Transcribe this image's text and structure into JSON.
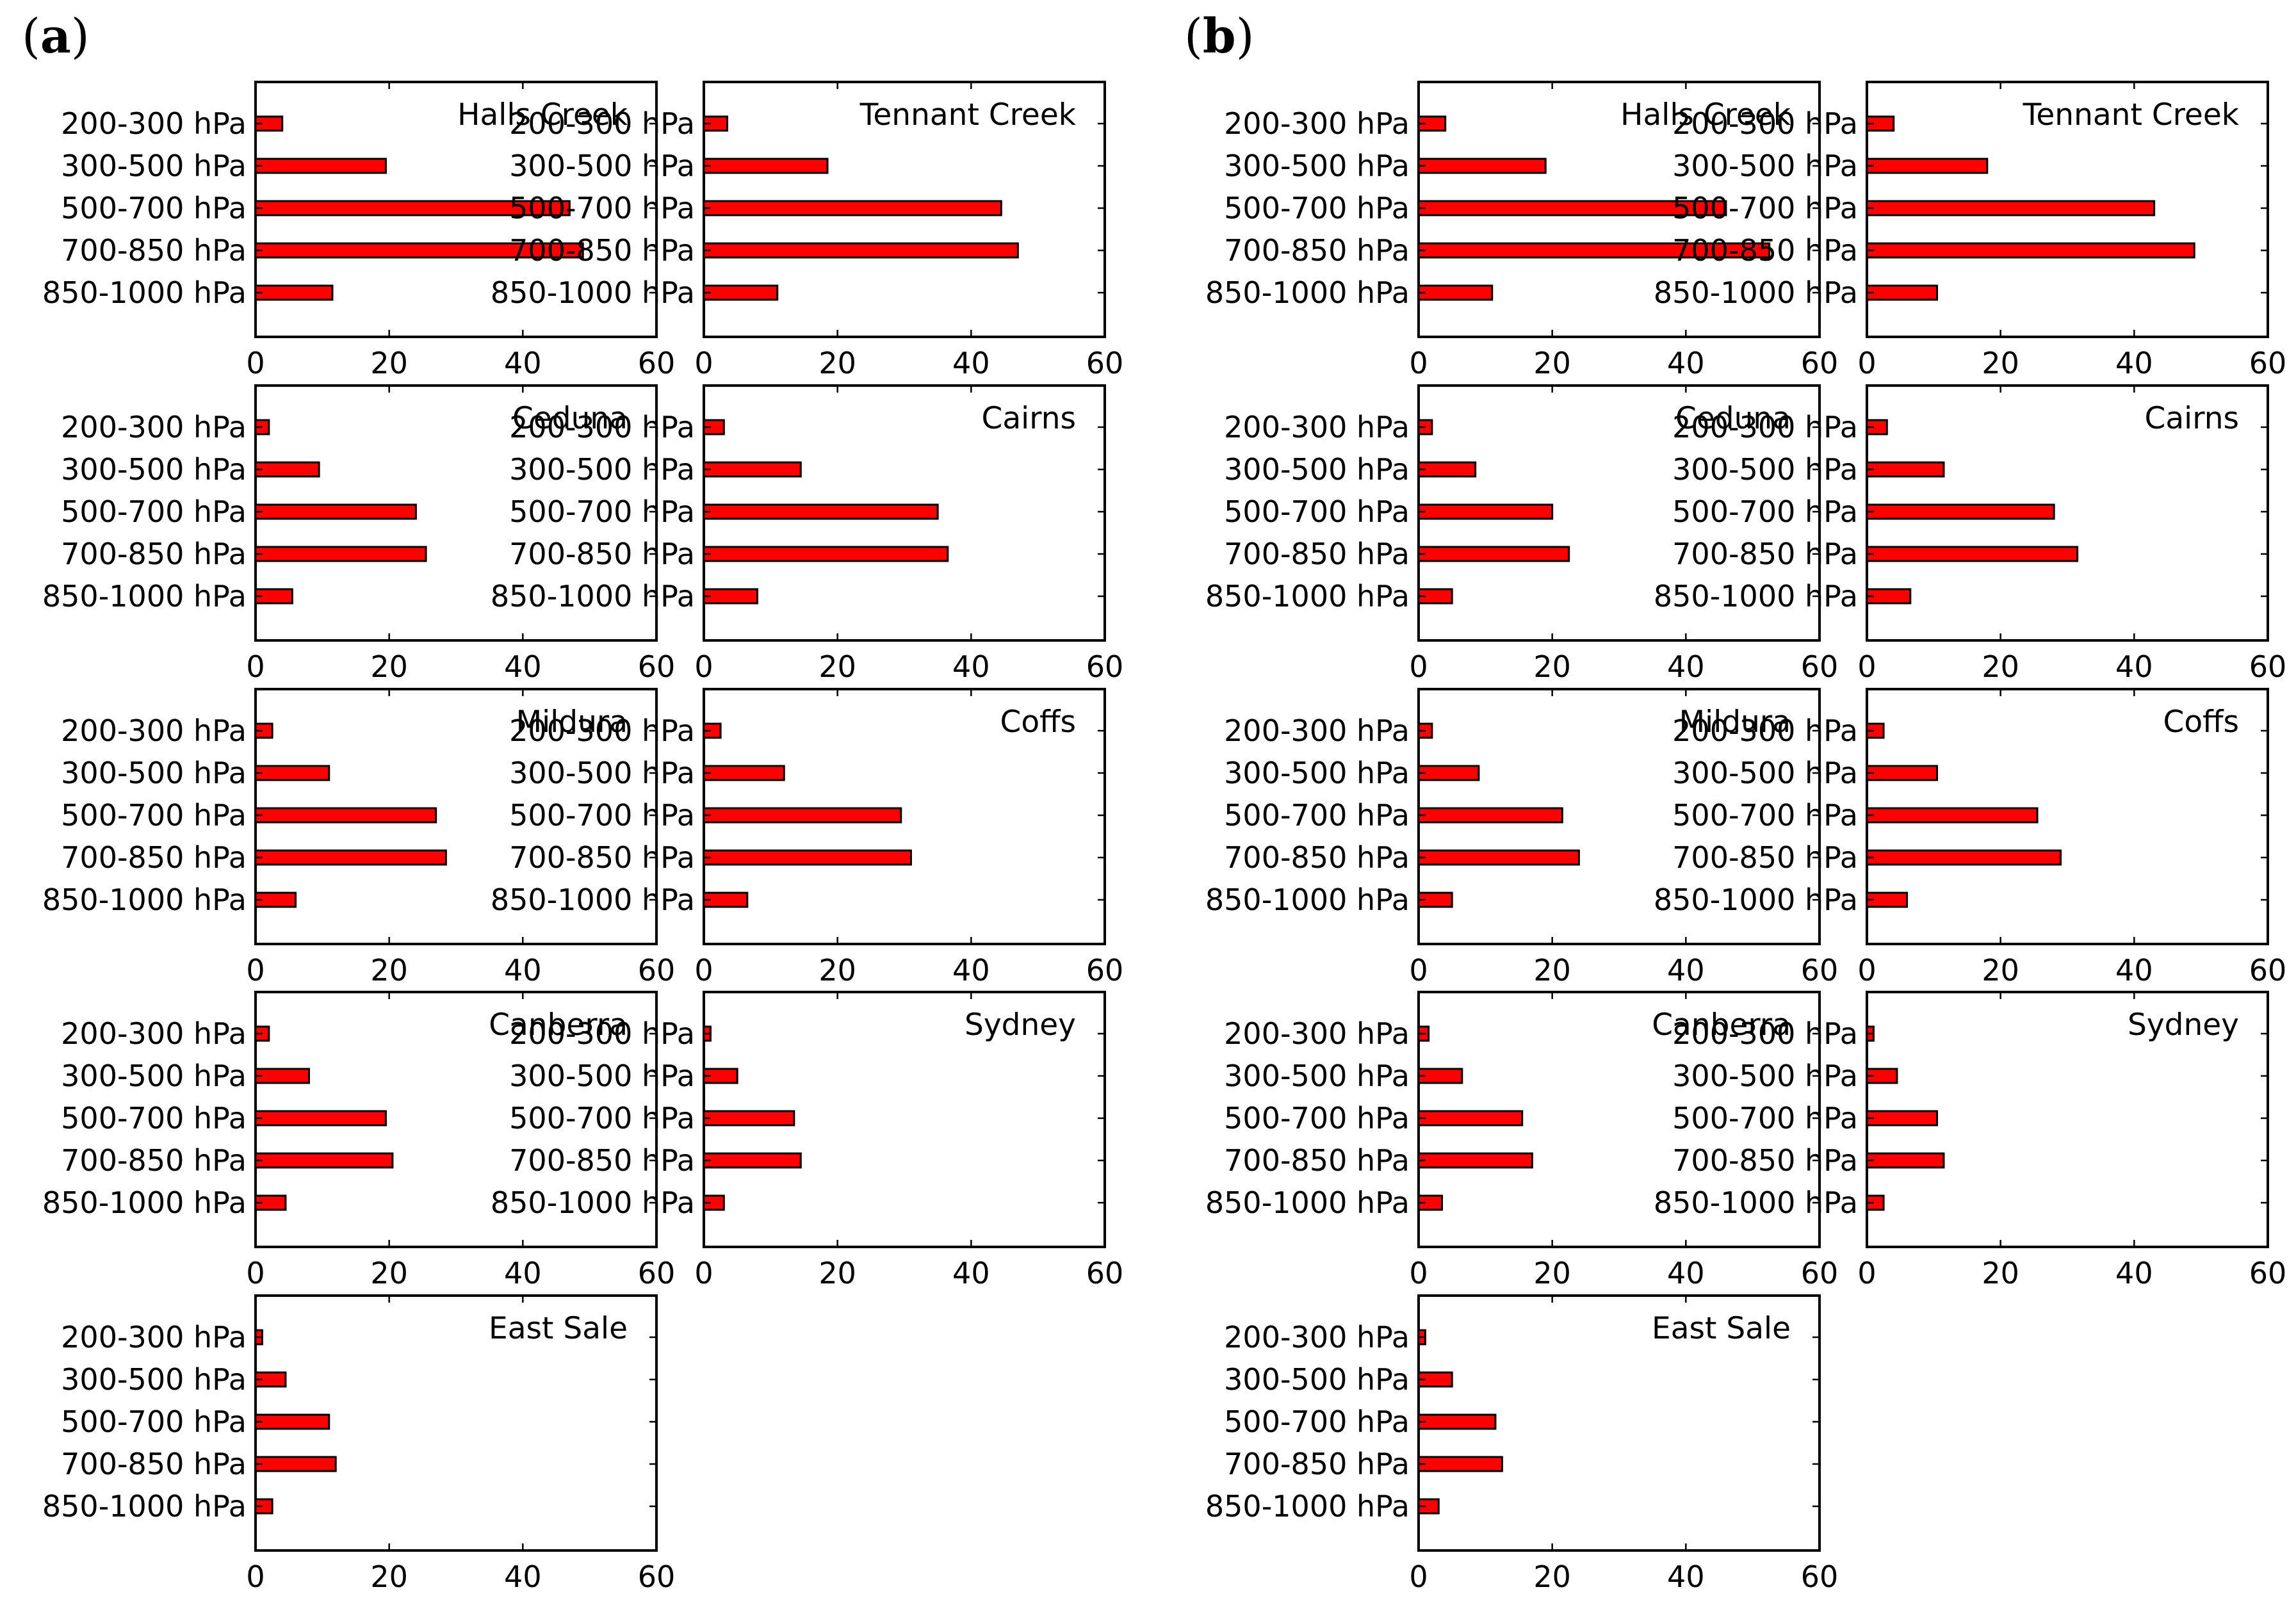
{
  "colors": {
    "bar_fill": "#ff0000",
    "bar_stroke": "#000000",
    "axis": "#000000",
    "background": "#ffffff"
  },
  "panels": [
    {
      "label": "(a)",
      "label_bold": "a"
    },
    {
      "label": "(b)",
      "label_bold": "b"
    }
  ],
  "chart_data": [
    {
      "panel": "a",
      "type": "bar",
      "orientation": "horizontal",
      "categories": [
        "200-300 hPa",
        "300-500 hPa",
        "500-700 hPa",
        "700-850 hPa",
        "850-1000 hPa"
      ],
      "xlim": [
        0,
        60
      ],
      "xticks": [
        "0",
        "20",
        "40",
        "60"
      ],
      "series": [
        {
          "name": "Halls Creek",
          "values": [
            4,
            19.5,
            47,
            49,
            11.5
          ]
        },
        {
          "name": "Tennant Creek",
          "values": [
            3.5,
            18.5,
            44.5,
            47,
            11
          ]
        },
        {
          "name": "Ceduna",
          "values": [
            2,
            9.5,
            24,
            25.5,
            5.5
          ]
        },
        {
          "name": "Cairns",
          "values": [
            3,
            14.5,
            35,
            36.5,
            8
          ]
        },
        {
          "name": "Mildura",
          "values": [
            2.5,
            11,
            27,
            28.5,
            6
          ]
        },
        {
          "name": "Coffs",
          "values": [
            2.5,
            12,
            29.5,
            31,
            6.5
          ]
        },
        {
          "name": "Canberra",
          "values": [
            2,
            8,
            19.5,
            20.5,
            4.5
          ]
        },
        {
          "name": "Sydney",
          "values": [
            1,
            5,
            13.5,
            14.5,
            3
          ]
        },
        {
          "name": "East Sale",
          "values": [
            1,
            4.5,
            11,
            12,
            2.5
          ]
        }
      ]
    },
    {
      "panel": "b",
      "type": "bar",
      "orientation": "horizontal",
      "categories": [
        "200-300 hPa",
        "300-500 hPa",
        "500-700 hPa",
        "700-850 hPa",
        "850-1000 hPa"
      ],
      "xlim": [
        0,
        60
      ],
      "xticks": [
        "0",
        "20",
        "40",
        "60"
      ],
      "series": [
        {
          "name": "Halls Creek",
          "values": [
            4,
            19,
            46,
            52.5,
            11
          ]
        },
        {
          "name": "Tennant Creek",
          "values": [
            4,
            18,
            43,
            49,
            10.5
          ]
        },
        {
          "name": "Ceduna",
          "values": [
            2,
            8.5,
            20,
            22.5,
            5
          ]
        },
        {
          "name": "Cairns",
          "values": [
            3,
            11.5,
            28,
            31.5,
            6.5
          ]
        },
        {
          "name": "Mildura",
          "values": [
            2,
            9,
            21.5,
            24,
            5
          ]
        },
        {
          "name": "Coffs",
          "values": [
            2.5,
            10.5,
            25.5,
            29,
            6
          ]
        },
        {
          "name": "Canberra",
          "values": [
            1.5,
            6.5,
            15.5,
            17,
            3.5
          ]
        },
        {
          "name": "Sydney",
          "values": [
            1,
            4.5,
            10.5,
            11.5,
            2.5
          ]
        },
        {
          "name": "East Sale",
          "values": [
            1,
            5,
            11.5,
            12.5,
            3
          ]
        }
      ]
    }
  ]
}
